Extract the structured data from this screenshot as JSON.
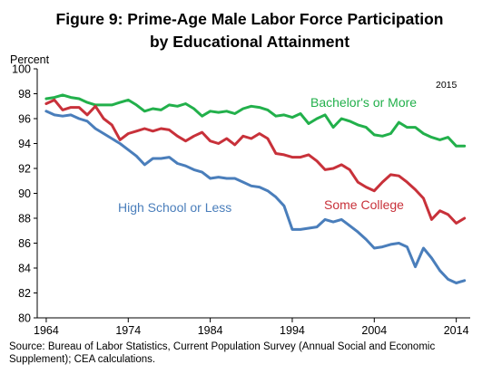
{
  "chart_data": {
    "type": "line",
    "title": [
      "Figure 9: Prime-Age Male Labor Force Participation",
      "by Educational Attainment"
    ],
    "ylabel": "Percent",
    "ylim": [
      80,
      100
    ],
    "yticks": [
      80,
      82,
      84,
      86,
      88,
      90,
      92,
      94,
      96,
      98,
      100
    ],
    "xlim": [
      1964,
      2015
    ],
    "xticks": [
      1964,
      1974,
      1984,
      1994,
      2004,
      2014
    ],
    "note": "2015",
    "grid": false,
    "series": [
      {
        "name": "Bachelor's or More",
        "color": "#22b04b",
        "x": [
          1964,
          1965,
          1966,
          1967,
          1968,
          1969,
          1970,
          1971,
          1972,
          1973,
          1974,
          1975,
          1976,
          1977,
          1978,
          1979,
          1980,
          1981,
          1982,
          1983,
          1984,
          1985,
          1986,
          1987,
          1988,
          1989,
          1990,
          1991,
          1992,
          1993,
          1994,
          1995,
          1996,
          1997,
          1998,
          1999,
          2000,
          2001,
          2002,
          2003,
          2004,
          2005,
          2006,
          2007,
          2008,
          2009,
          2010,
          2011,
          2012,
          2013,
          2014,
          2015
        ],
        "values": [
          97.6,
          97.7,
          97.9,
          97.7,
          97.6,
          97.3,
          97.1,
          97.1,
          97.1,
          97.3,
          97.5,
          97.1,
          96.6,
          96.8,
          96.7,
          97.1,
          97.0,
          97.2,
          96.8,
          96.2,
          96.6,
          96.5,
          96.6,
          96.4,
          96.8,
          97.0,
          96.9,
          96.7,
          96.2,
          96.3,
          96.1,
          96.4,
          95.6,
          96.0,
          96.3,
          95.3,
          96.0,
          95.8,
          95.5,
          95.3,
          94.7,
          94.6,
          94.8,
          95.7,
          95.3,
          95.3,
          94.8,
          94.5,
          94.3,
          94.5,
          93.8,
          93.8
        ]
      },
      {
        "name": "Some College",
        "color": "#c8313a",
        "x": [
          1964,
          1965,
          1966,
          1967,
          1968,
          1969,
          1970,
          1971,
          1972,
          1973,
          1974,
          1975,
          1976,
          1977,
          1978,
          1979,
          1980,
          1981,
          1982,
          1983,
          1984,
          1985,
          1986,
          1987,
          1988,
          1989,
          1990,
          1991,
          1992,
          1993,
          1994,
          1995,
          1996,
          1997,
          1998,
          1999,
          2000,
          2001,
          2002,
          2003,
          2004,
          2005,
          2006,
          2007,
          2008,
          2009,
          2010,
          2011,
          2012,
          2013,
          2014,
          2015
        ],
        "values": [
          97.2,
          97.5,
          96.7,
          96.9,
          96.9,
          96.3,
          97.0,
          96.0,
          95.5,
          94.3,
          94.8,
          95.0,
          95.2,
          95.0,
          95.2,
          95.1,
          94.6,
          94.2,
          94.6,
          94.9,
          94.2,
          94.0,
          94.4,
          93.9,
          94.6,
          94.4,
          94.8,
          94.4,
          93.2,
          93.1,
          92.9,
          92.9,
          93.1,
          92.6,
          91.9,
          92.0,
          92.3,
          91.9,
          90.9,
          90.5,
          90.2,
          90.9,
          91.5,
          91.4,
          90.9,
          90.3,
          89.6,
          87.9,
          88.6,
          88.3,
          87.6,
          88.0
        ]
      },
      {
        "name": "High School or Less",
        "color": "#4a7ebb",
        "x": [
          1964,
          1965,
          1966,
          1967,
          1968,
          1969,
          1970,
          1971,
          1972,
          1973,
          1974,
          1975,
          1976,
          1977,
          1978,
          1979,
          1980,
          1981,
          1982,
          1983,
          1984,
          1985,
          1986,
          1987,
          1988,
          1989,
          1990,
          1991,
          1992,
          1993,
          1994,
          1995,
          1996,
          1997,
          1998,
          1999,
          2000,
          2001,
          2002,
          2003,
          2004,
          2005,
          2006,
          2007,
          2008,
          2009,
          2010,
          2011,
          2012,
          2013,
          2014,
          2015
        ],
        "values": [
          96.6,
          96.3,
          96.2,
          96.3,
          96.0,
          95.8,
          95.2,
          94.8,
          94.4,
          94.0,
          93.5,
          93.0,
          92.3,
          92.8,
          92.8,
          92.9,
          92.4,
          92.2,
          91.9,
          91.7,
          91.2,
          91.3,
          91.2,
          91.2,
          90.9,
          90.6,
          90.5,
          90.2,
          89.7,
          89.0,
          87.1,
          87.1,
          87.2,
          87.3,
          87.9,
          87.7,
          87.9,
          87.4,
          86.9,
          86.3,
          85.6,
          85.7,
          85.9,
          86.0,
          85.7,
          84.1,
          85.6,
          84.8,
          83.8,
          83.1,
          82.8,
          83.0
        ]
      }
    ]
  },
  "source": "Source: Bureau of Labor Statistics, Current Population Survey (Annual Social and Economic Supplement); CEA calculations."
}
